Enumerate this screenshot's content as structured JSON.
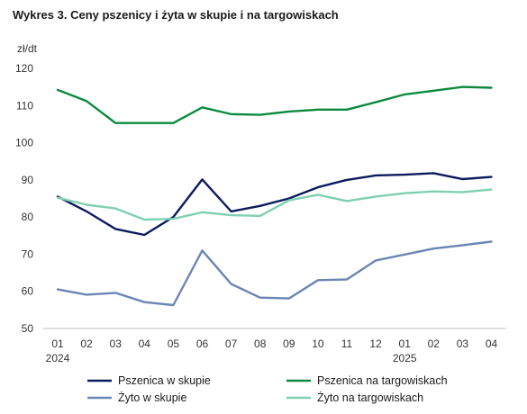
{
  "chart_data": {
    "type": "line",
    "title": "Wykres 3. Ceny pszenicy i żyta w skupie i na targowiskach",
    "unit_label": "zł/dt",
    "ylim": [
      50,
      120
    ],
    "yticks": [
      50,
      60,
      70,
      80,
      90,
      100,
      110,
      120
    ],
    "categories": [
      "01",
      "02",
      "03",
      "04",
      "05",
      "06",
      "07",
      "08",
      "09",
      "10",
      "11",
      "12",
      "01",
      "02",
      "03",
      "04"
    ],
    "year_labels": [
      {
        "index": 0,
        "label": "2024"
      },
      {
        "index": 12,
        "label": "2025"
      }
    ],
    "grid": false,
    "legend_position": "bottom",
    "series": [
      {
        "name": "Pszenica w skupie",
        "color": "#0d1b5e",
        "values": [
          85.5,
          81.5,
          76.8,
          75.2,
          80.0,
          90.1,
          81.5,
          83.0,
          85.0,
          88.0,
          90.0,
          91.2,
          91.4,
          91.8,
          90.2,
          90.8
        ]
      },
      {
        "name": "Pszenica na targowiskach",
        "color": "#0b8a3e",
        "values": [
          114.2,
          111.2,
          105.3,
          105.3,
          105.3,
          109.5,
          107.7,
          107.5,
          108.4,
          108.9,
          108.9,
          110.9,
          113.0,
          114.0,
          115.0,
          114.8
        ]
      },
      {
        "name": "Żyto w skupie",
        "color": "#6b86b4",
        "values": [
          60.5,
          59.1,
          59.6,
          57.1,
          56.3,
          71.0,
          62.0,
          58.3,
          58.1,
          63.0,
          63.2,
          68.3,
          69.9,
          71.5,
          72.4,
          73.4
        ]
      },
      {
        "name": "Żyto na targowiskach",
        "color": "#7fd0b0",
        "values": [
          85.2,
          83.3,
          82.3,
          79.3,
          79.5,
          81.3,
          80.5,
          80.3,
          84.5,
          86.0,
          84.3,
          85.5,
          86.4,
          86.9,
          86.7,
          87.4
        ]
      }
    ]
  }
}
